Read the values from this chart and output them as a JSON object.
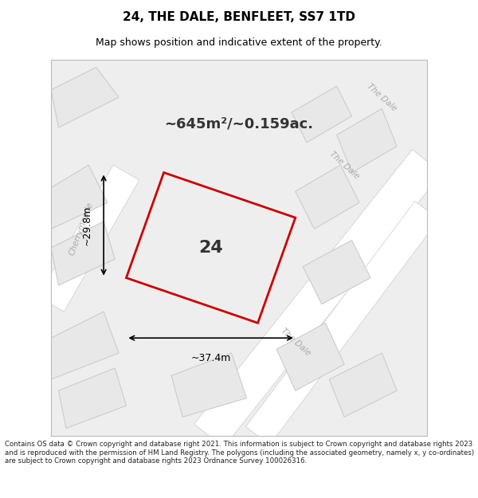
{
  "title": "24, THE DALE, BENFLEET, SS7 1TD",
  "subtitle": "Map shows position and indicative extent of the property.",
  "footer": "Contains OS data © Crown copyright and database right 2021. This information is subject to Crown copyright and database rights 2023 and is reproduced with the permission of HM Land Registry. The polygons (including the associated geometry, namely x, y co-ordinates) are subject to Crown copyright and database rights 2023 Ordnance Survey 100026316.",
  "area_text": "~645m²/~0.159ac.",
  "width_label": "~37.4m",
  "height_label": "~29.8m",
  "plot_number": "24",
  "bg_color": "#f0f0f0",
  "map_bg_color": "#f5f5f5",
  "road_color": "#ffffff",
  "road_stroke": "#cccccc",
  "building_fill": "#e8e8e8",
  "building_stroke": "#cccccc",
  "plot_stroke": "#cc0000",
  "plot_fill": "none",
  "dim_color": "#000000",
  "road_label_color": "#888888",
  "title_color": "#000000",
  "map_border_color": "#cccccc"
}
